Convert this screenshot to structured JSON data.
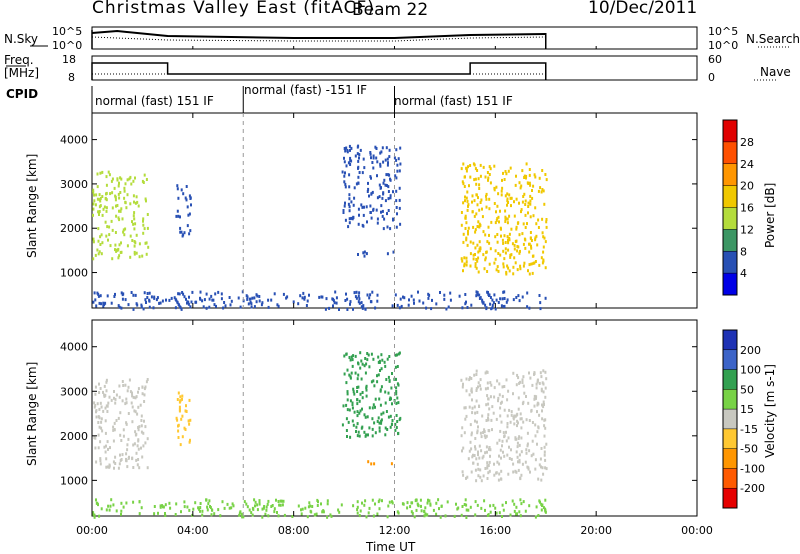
{
  "header": {
    "site": "Christmas Valley East (fitACF)",
    "beam": "Beam 22",
    "date": "10/Dec/2011"
  },
  "left_labels": {
    "nsky": "N.Sky",
    "freq_line1": "Freq.",
    "freq_line2": "[MHz]",
    "cpid": "CPID"
  },
  "right_labels": {
    "nsearch": "N.Search",
    "nave": "Nave"
  },
  "noise_axis": {
    "left_top": "10^5",
    "left_bottom": "10^0",
    "right_top": "10^5",
    "right_bottom": "10^0"
  },
  "freq_axis": {
    "left_top": "18",
    "left_bottom": "8",
    "right_top": "60",
    "right_bottom": "0"
  },
  "cpid_segments": [
    {
      "label": "normal (fast) 151 IF",
      "start_hour": 0,
      "end_hour": 6
    },
    {
      "label": "normal (fast) -151 IF",
      "start_hour": 6,
      "end_hour": 12
    },
    {
      "label": "normal (fast) 151 IF",
      "start_hour": 12,
      "end_hour": 18
    }
  ],
  "power_colorbar": {
    "label": "Power [dB]",
    "ticks": [
      "28",
      "24",
      "20",
      "16",
      "12",
      "8",
      "4"
    ],
    "colors": [
      "#e00000",
      "#ff5000",
      "#ff9600",
      "#f0c800",
      "#b4dc3c",
      "#3c9664",
      "#2850b4",
      "#0000e6"
    ]
  },
  "velocity_colorbar": {
    "label": "Velocity [m s-1]",
    "ticks": [
      "200",
      "100",
      "50",
      "15",
      "-15",
      "-50",
      "-100",
      "-200"
    ],
    "colors": [
      "#1e32b4",
      "#3c64c8",
      "#32a050",
      "#78d246",
      "#c8c8c0",
      "#ffc832",
      "#ff9600",
      "#ff5a00",
      "#e60000"
    ]
  },
  "colors": {
    "scatter_ground": "#2a55c8"
  },
  "chart_data": [
    {
      "type": "heatmap",
      "name": "Power",
      "xlabel": "Time UT",
      "ylabel": "Slant Range [km]",
      "xlim": [
        0,
        24
      ],
      "ylim": [
        200,
        4600
      ],
      "x_ticks": [
        "00:00",
        "04:00",
        "08:00",
        "12:00",
        "16:00",
        "20:00",
        "00:00"
      ],
      "y_ticks": [
        "1000",
        "2000",
        "3000",
        "4000"
      ],
      "features": [
        {
          "x_range": [
            0.0,
            2.2
          ],
          "y_range": [
            1300,
            3300
          ],
          "power_db": 16
        },
        {
          "x_range": [
            3.3,
            3.9
          ],
          "y_range": [
            1800,
            3000
          ],
          "power_db": 6
        },
        {
          "x_range": [
            9.9,
            12.2
          ],
          "y_range": [
            2000,
            3900
          ],
          "power_db": 8
        },
        {
          "x_range": [
            10.5,
            12.2
          ],
          "y_range": [
            1400,
            1500
          ],
          "power_db": 6
        },
        {
          "x_range": [
            14.6,
            18.0
          ],
          "y_range": [
            1000,
            3500
          ],
          "power_db": 20
        },
        {
          "x_range": [
            0.0,
            18.0
          ],
          "y_range": [
            200,
            600
          ],
          "power_db": 6
        }
      ]
    },
    {
      "type": "heatmap",
      "name": "Velocity",
      "xlabel": "Time UT",
      "ylabel": "Slant Range [km]",
      "xlim": [
        0,
        24
      ],
      "ylim": [
        200,
        4600
      ],
      "x_ticks": [
        "00:00",
        "04:00",
        "08:00",
        "12:00",
        "16:00",
        "20:00",
        "00:00"
      ],
      "y_ticks": [
        "1000",
        "2000",
        "3000",
        "4000"
      ],
      "features": [
        {
          "x_range": [
            0.0,
            2.2
          ],
          "y_range": [
            1300,
            3300
          ],
          "velocity": 0
        },
        {
          "x_range": [
            3.3,
            3.9
          ],
          "y_range": [
            1800,
            3000
          ],
          "velocity": -20
        },
        {
          "x_range": [
            9.9,
            12.2
          ],
          "y_range": [
            2000,
            3900
          ],
          "velocity": 40
        },
        {
          "x_range": [
            10.5,
            12.2
          ],
          "y_range": [
            1400,
            1500
          ],
          "velocity": -60
        },
        {
          "x_range": [
            14.6,
            18.0
          ],
          "y_range": [
            1000,
            3500
          ],
          "velocity": 0
        },
        {
          "x_range": [
            0.0,
            18.0
          ],
          "y_range": [
            200,
            600
          ],
          "velocity": 30
        }
      ]
    }
  ]
}
